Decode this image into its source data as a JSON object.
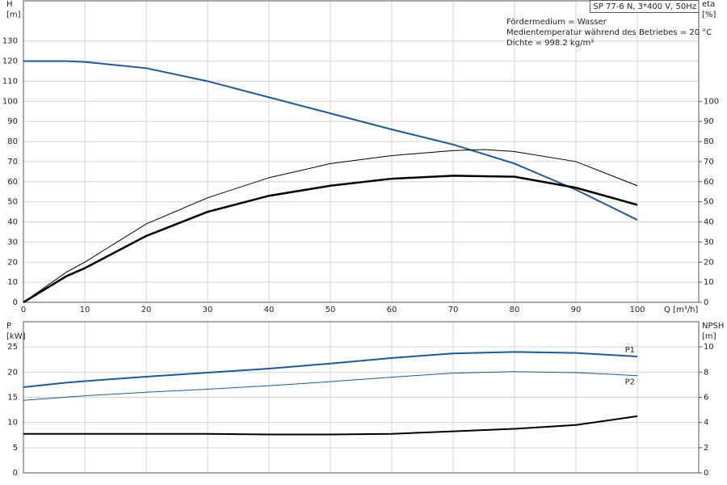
{
  "chart_data": [
    {
      "type": "line",
      "ylabel": [
        "H",
        "[m]"
      ],
      "y2label": [
        "eta",
        "[%]"
      ],
      "xlabel": "Q [m³/h]",
      "annotations": {
        "box": "SP 77-6 N, 3*400 V, 50Hz",
        "notes": [
          "Fördermedium = Wasser",
          "Medientemperatur während des Betriebes = 20 °C",
          "Dichte = 998.2 kg/m³"
        ]
      },
      "xlim": [
        0,
        110
      ],
      "xticks": [
        0,
        10,
        20,
        30,
        40,
        50,
        60,
        70,
        80,
        90,
        100
      ],
      "ylim": [
        0,
        150
      ],
      "yticks": [
        0,
        10,
        20,
        30,
        40,
        50,
        60,
        70,
        80,
        90,
        100,
        110,
        120,
        130
      ],
      "y2lim": [
        0,
        150
      ],
      "y2ticks": [
        0,
        10,
        20,
        30,
        40,
        50,
        60,
        70,
        80,
        90,
        100
      ],
      "grid": true,
      "series": [
        {
          "color": "#1f5a96",
          "linewidth": 2,
          "x": [
            0,
            7,
            10,
            20,
            30,
            40,
            50,
            60,
            70,
            80,
            90,
            100
          ],
          "values": [
            120,
            120,
            119.6,
            116.5,
            110,
            102,
            94,
            86,
            78.5,
            69,
            56,
            41
          ]
        },
        {
          "color": "#000000",
          "linewidth": 1,
          "axis": "y2",
          "x": [
            0,
            7,
            10,
            20,
            30,
            40,
            50,
            60,
            70,
            75,
            80,
            90,
            100
          ],
          "values": [
            0,
            15,
            20,
            39,
            52,
            62,
            69,
            73,
            75.5,
            76,
            75,
            70,
            58
          ]
        },
        {
          "color": "#000000",
          "linewidth": 2.5,
          "axis": "y2",
          "x": [
            0,
            7,
            10,
            20,
            30,
            40,
            50,
            60,
            70,
            80,
            90,
            100
          ],
          "values": [
            0,
            13,
            17,
            33,
            45,
            53,
            58,
            61.5,
            63,
            62.5,
            57,
            48.5
          ]
        }
      ]
    },
    {
      "type": "line",
      "ylabel": [
        "P",
        "[kW]"
      ],
      "y2label": [
        "NPSH",
        "[m]"
      ],
      "xlim": [
        0,
        110
      ],
      "xticks": [
        0,
        10,
        20,
        30,
        40,
        50,
        60,
        70,
        80,
        90,
        100
      ],
      "ylim": [
        0,
        30
      ],
      "yticks": [
        0,
        5,
        10,
        15,
        20,
        25
      ],
      "y2lim": [
        0,
        12
      ],
      "y2ticks": [
        0,
        2,
        4,
        6,
        8,
        10
      ],
      "grid": true,
      "series": [
        {
          "name": "P1",
          "color": "#1f5a96",
          "linewidth": 2,
          "x": [
            0,
            7,
            10,
            20,
            30,
            40,
            50,
            60,
            70,
            80,
            90,
            100
          ],
          "values": [
            17,
            17.9,
            18.2,
            19.1,
            19.9,
            20.7,
            21.7,
            22.8,
            23.7,
            24,
            23.8,
            23.1
          ]
        },
        {
          "name": "P2",
          "color": "#1f5a96",
          "linewidth": 1,
          "x": [
            0,
            10,
            20,
            30,
            40,
            50,
            60,
            70,
            80,
            90,
            100
          ],
          "values": [
            14.4,
            15.3,
            16,
            16.6,
            17.3,
            18.1,
            19,
            19.8,
            20.1,
            19.9,
            19.3
          ]
        },
        {
          "color": "#000000",
          "linewidth": 2,
          "axis": "y2",
          "x": [
            0,
            10,
            20,
            30,
            40,
            50,
            60,
            70,
            80,
            90,
            100
          ],
          "values": [
            3.1,
            3.1,
            3.1,
            3.1,
            3.05,
            3.05,
            3.1,
            3.3,
            3.5,
            3.8,
            4.5
          ]
        }
      ]
    }
  ]
}
